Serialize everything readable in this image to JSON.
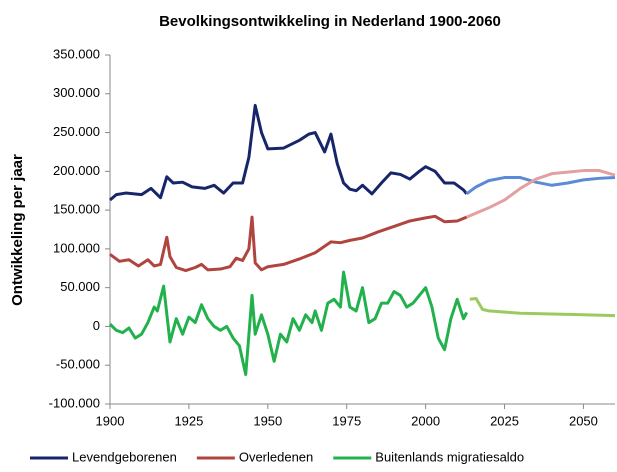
{
  "chart_data": {
    "type": "line",
    "title": "Bevolkingsontwikkeling in Nederland 1900-2060",
    "y_label": "Ontwikkeling per jaar",
    "xlim": [
      1900,
      2060
    ],
    "xticks": [
      1900,
      1925,
      1950,
      1975,
      2000,
      2025,
      2050
    ],
    "ylim": [
      -100000,
      350000
    ],
    "yticks": [
      {
        "value": -100000,
        "label": "-100.000"
      },
      {
        "value": -50000,
        "label": "-50.000"
      },
      0,
      {
        "value": 50000,
        "label": "50.000"
      },
      {
        "value": 100000,
        "label": "100.000"
      },
      {
        "value": 150000,
        "label": "150.000"
      },
      {
        "value": 200000,
        "label": "200.000"
      },
      {
        "value": 250000,
        "label": "250.000"
      },
      {
        "value": 300000,
        "label": "300.000"
      },
      {
        "value": 350000,
        "label": "350.000"
      }
    ],
    "grid": false,
    "legend": "bottom",
    "series": [
      {
        "name": "Levendgeborenen",
        "color": "#17266b",
        "x": [
          1900,
          1902,
          1905,
          1910,
          1913,
          1916,
          1918,
          1920,
          1923,
          1926,
          1930,
          1933,
          1936,
          1939,
          1942,
          1944,
          1946,
          1948,
          1950,
          1955,
          1960,
          1963,
          1965,
          1968,
          1970,
          1972,
          1974,
          1976,
          1978,
          1980,
          1983,
          1986,
          1989,
          1992,
          1995,
          1998,
          2000,
          2003,
          2006,
          2009,
          2012,
          2013
        ],
        "values": [
          163000,
          170000,
          172000,
          170000,
          178000,
          166000,
          193000,
          185000,
          186000,
          180000,
          178000,
          182000,
          172000,
          185000,
          185000,
          218000,
          285000,
          250000,
          229000,
          230000,
          240000,
          248000,
          250000,
          225000,
          248000,
          210000,
          185000,
          177000,
          175000,
          182000,
          171000,
          185000,
          198000,
          196000,
          190000,
          200000,
          206000,
          200000,
          185000,
          185000,
          176000,
          171000
        ]
      },
      {
        "name": "Overledenen",
        "color": "#b0443f",
        "x": [
          1900,
          1903,
          1906,
          1909,
          1912,
          1914,
          1916,
          1918,
          1919,
          1921,
          1924,
          1927,
          1929,
          1931,
          1935,
          1938,
          1940,
          1942,
          1944,
          1945,
          1946,
          1948,
          1950,
          1955,
          1960,
          1965,
          1970,
          1973,
          1976,
          1980,
          1985,
          1990,
          1995,
          2000,
          2003,
          2006,
          2010,
          2013
        ],
        "values": [
          93000,
          84000,
          86000,
          78000,
          86000,
          78000,
          80000,
          115000,
          90000,
          76000,
          72000,
          76000,
          80000,
          73000,
          74000,
          77000,
          88000,
          85000,
          100000,
          141000,
          82000,
          73000,
          77000,
          80000,
          87000,
          95000,
          109000,
          108000,
          111000,
          114000,
          122000,
          129000,
          136000,
          140000,
          142000,
          135000,
          136000,
          141000
        ]
      },
      {
        "name": "Buitenlands migratiesaldo",
        "color": "#22b14c",
        "x": [
          1900,
          1902,
          1904,
          1906,
          1908,
          1910,
          1912,
          1914,
          1915,
          1917,
          1919,
          1921,
          1923,
          1925,
          1927,
          1929,
          1931,
          1933,
          1935,
          1937,
          1939,
          1941,
          1943,
          1945,
          1946,
          1948,
          1950,
          1952,
          1954,
          1956,
          1958,
          1960,
          1962,
          1964,
          1965,
          1967,
          1969,
          1971,
          1973,
          1974,
          1976,
          1978,
          1980,
          1982,
          1984,
          1986,
          1988,
          1990,
          1992,
          1994,
          1996,
          1998,
          2000,
          2002,
          2004,
          2006,
          2008,
          2010,
          2012,
          2013
        ],
        "values": [
          3000,
          -5000,
          -8000,
          -2000,
          -15000,
          -10000,
          5000,
          25000,
          20000,
          52000,
          -20000,
          10000,
          -10000,
          12000,
          5000,
          28000,
          10000,
          0,
          -5000,
          0,
          -15000,
          -25000,
          -62000,
          40000,
          -10000,
          15000,
          -10000,
          -45000,
          -10000,
          -20000,
          10000,
          -5000,
          15000,
          5000,
          20000,
          -5000,
          30000,
          35000,
          25000,
          70000,
          25000,
          20000,
          50000,
          5000,
          10000,
          30000,
          30000,
          45000,
          40000,
          25000,
          30000,
          40000,
          50000,
          25000,
          -15000,
          -30000,
          10000,
          35000,
          10000,
          18000
        ]
      },
      {
        "color": "#5b8ad6",
        "x": [
          2013,
          2016,
          2020,
          2025,
          2030,
          2035,
          2040,
          2045,
          2050,
          2055,
          2060
        ],
        "values": [
          171000,
          180000,
          188000,
          192000,
          192000,
          186000,
          182000,
          185000,
          189000,
          191000,
          192000
        ]
      },
      {
        "color": "#e4a0a0",
        "x": [
          2013,
          2020,
          2025,
          2030,
          2035,
          2040,
          2045,
          2050,
          2055,
          2060
        ],
        "values": [
          141000,
          153000,
          163000,
          178000,
          190000,
          197000,
          199000,
          201000,
          201000,
          195000
        ]
      },
      {
        "color": "#9bcb5f",
        "x": [
          2014,
          2016,
          2018,
          2020,
          2030,
          2040,
          2050,
          2060
        ],
        "values": [
          35000,
          36000,
          22000,
          20000,
          17000,
          16000,
          15000,
          14000
        ]
      }
    ]
  }
}
